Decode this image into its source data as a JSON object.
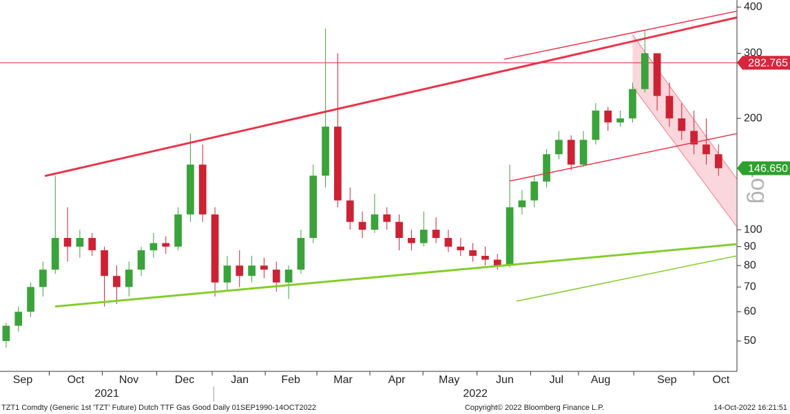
{
  "chart_data": {
    "type": "candlestick",
    "log_scale": true,
    "xlim": [
      0,
      60
    ],
    "ylim": [
      41.4,
      418
    ],
    "yticks": [
      50,
      60,
      70,
      80,
      90,
      100,
      200,
      300,
      400
    ],
    "xticks": [
      {
        "value": 1.85,
        "label": "Sep"
      },
      {
        "value": 6.17,
        "label": "Oct"
      },
      {
        "value": 10.49,
        "label": "Nov"
      },
      {
        "value": 15.03,
        "label": "Dec"
      },
      {
        "value": 19.52,
        "label": "Jan"
      },
      {
        "value": 23.67,
        "label": "Feb"
      },
      {
        "value": 27.93,
        "label": "Mar"
      },
      {
        "value": 32.3,
        "label": "Apr"
      },
      {
        "value": 36.57,
        "label": "May"
      },
      {
        "value": 41.1,
        "label": "Jun"
      },
      {
        "value": 45.3,
        "label": "Jul"
      },
      {
        "value": 48.9,
        "label": "Aug"
      },
      {
        "value": 54.3,
        "label": "Sep"
      },
      {
        "value": 58.7,
        "label": "Oct"
      }
    ],
    "year_ticks": [
      {
        "value": 8.7,
        "label": "2021"
      },
      {
        "value": 38.7,
        "label": "2022"
      }
    ],
    "year_divider": 17.4,
    "up_color": "#3aa33a",
    "down_color": "#cc2233",
    "open": [
      50,
      55,
      60,
      70,
      78,
      95,
      90,
      95,
      88,
      75,
      70,
      78,
      88,
      92,
      90,
      110,
      150,
      110,
      72,
      80,
      75,
      80,
      78,
      72,
      78,
      95,
      140,
      190,
      120,
      105,
      100,
      110,
      105,
      95,
      92,
      100,
      95,
      90,
      88,
      85,
      83,
      80,
      115,
      120,
      135,
      160,
      175,
      150,
      175,
      210,
      195,
      200,
      240,
      300,
      230,
      200,
      185,
      170,
      160
    ],
    "high": [
      56,
      62,
      72,
      82,
      140,
      115,
      100,
      98,
      90,
      80,
      82,
      90,
      98,
      96,
      115,
      182,
      170,
      115,
      85,
      88,
      85,
      84,
      82,
      80,
      100,
      150,
      350,
      300,
      130,
      112,
      125,
      115,
      110,
      100,
      112,
      108,
      100,
      95,
      92,
      90,
      86,
      150,
      128,
      140,
      165,
      185,
      180,
      185,
      220,
      215,
      210,
      250,
      345,
      300,
      250,
      220,
      210,
      200,
      170
    ],
    "low": [
      48,
      53,
      58,
      66,
      76,
      82,
      84,
      85,
      62,
      63,
      66,
      75,
      84,
      86,
      88,
      105,
      105,
      66,
      68,
      70,
      72,
      74,
      68,
      65,
      76,
      92,
      130,
      115,
      100,
      95,
      98,
      100,
      88,
      88,
      90,
      92,
      87,
      85,
      82,
      80,
      78,
      79,
      110,
      115,
      130,
      155,
      145,
      148,
      170,
      185,
      190,
      195,
      235,
      210,
      190,
      175,
      160,
      150,
      140
    ],
    "close": [
      55,
      60,
      70,
      78,
      95,
      90,
      95,
      88,
      75,
      70,
      78,
      88,
      92,
      90,
      110,
      150,
      110,
      72,
      80,
      75,
      80,
      78,
      72,
      78,
      95,
      140,
      190,
      120,
      105,
      100,
      110,
      105,
      95,
      92,
      100,
      95,
      90,
      88,
      85,
      83,
      80,
      115,
      120,
      135,
      160,
      175,
      150,
      175,
      210,
      195,
      200,
      240,
      300,
      230,
      200,
      185,
      170,
      160,
      146.65
    ],
    "hline": {
      "value": 282.765,
      "color": "#d7263d"
    },
    "last_price": {
      "value": 146.65,
      "label": "146.650",
      "color": "#2ea02e"
    },
    "scale_label": "Log",
    "trendlines": [
      {
        "color": "#e8334a",
        "width": 3,
        "points": [
          [
            3.65,
            139.7
          ],
          [
            60,
            375
          ]
        ]
      },
      {
        "color": "#e8334a",
        "width": 1.5,
        "points": [
          [
            41.05,
            289
          ],
          [
            60,
            390
          ]
        ]
      },
      {
        "color": "#e8334a",
        "width": 1.5,
        "points": [
          [
            41.5,
            135.4
          ],
          [
            60,
            182
          ]
        ]
      },
      {
        "color": "#84cc2a",
        "width": 3,
        "points": [
          [
            4.49,
            62
          ],
          [
            60,
            91.4
          ]
        ]
      },
      {
        "color": "#84cc2a",
        "width": 1.5,
        "points": [
          [
            42.06,
            64.1
          ],
          [
            60,
            85
          ]
        ]
      }
    ],
    "channel": {
      "color": "#f2a7b2",
      "upper": [
        [
          51.5,
          337
        ],
        [
          60,
          137
        ]
      ],
      "lower": [
        [
          51.5,
          244
        ],
        [
          60,
          101.7
        ]
      ]
    },
    "footer_left": "TZT1 Comdty (Generic 1st 'TZT' Future) Dutch TTF Gas Good  Daily 01SEP1990-14OCT2022",
    "footer_center": "Copyright© 2022 Bloomberg Finance L.P.",
    "footer_right": "14-Oct-2022 16:21:51"
  }
}
